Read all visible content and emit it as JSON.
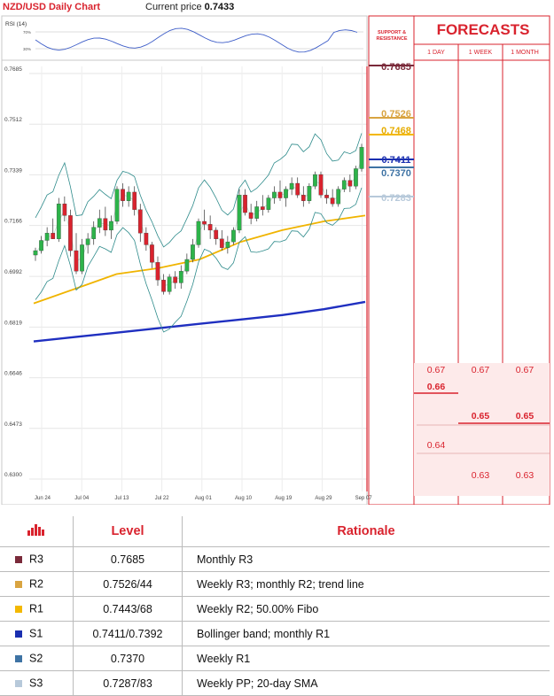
{
  "header": {
    "title": "NZD/USD Daily Chart",
    "price_label": "Current price",
    "price_value": "0.7433"
  },
  "rsi_label": "RSI (14)",
  "rsi_ticks": [
    "70%",
    "30%"
  ],
  "forecasts": {
    "title": "FORECASTS",
    "sr_header": "SUPPORT & RESISTANCE",
    "columns": [
      "1 DAY",
      "1 WEEK",
      "1 MONTH"
    ],
    "values": {
      "day": [
        "0.67",
        "0.66",
        "0.64"
      ],
      "week": [
        "0.67",
        "0.65",
        "0.63"
      ],
      "month": [
        "0.67",
        "0.65",
        "0.63"
      ]
    }
  },
  "levels_on_chart": [
    {
      "name": "R3",
      "value": "0.7685",
      "color": "#7a2a3a"
    },
    {
      "name": "R2",
      "value": "0.7526",
      "color": "#d9a441"
    },
    {
      "name": "R1",
      "value": "0.7468",
      "color": "#f3b800"
    },
    {
      "name": "S1",
      "value": "0.7411",
      "color": "#1a2fb0"
    },
    {
      "name": "S2",
      "value": "0.7370",
      "color": "#3e73a4"
    },
    {
      "name": "S3",
      "value": "0.7283",
      "color": "#b7c9da"
    }
  ],
  "chart_data": {
    "type": "candlestick",
    "title": "NZD/USD Daily Chart",
    "y_ticks": [
      "0.7685",
      "0.7512",
      "0.7339",
      "0.7166",
      "0.6992",
      "0.6819",
      "0.6646",
      "0.6473",
      "0.6300"
    ],
    "x_ticks": [
      "Jun 24",
      "Jul 04",
      "Jul 13",
      "Jul 22",
      "Aug 01",
      "Aug 10",
      "Aug 19",
      "Aug 29",
      "Sep 07"
    ],
    "ylim": [
      0.63,
      0.7685
    ],
    "candles": [
      [
        0.7065,
        0.709,
        0.7045,
        0.708
      ],
      [
        0.708,
        0.713,
        0.707,
        0.7115
      ],
      [
        0.7115,
        0.716,
        0.7095,
        0.714
      ],
      [
        0.714,
        0.719,
        0.712,
        0.712
      ],
      [
        0.712,
        0.726,
        0.711,
        0.724
      ],
      [
        0.724,
        0.7265,
        0.718,
        0.72
      ],
      [
        0.72,
        0.722,
        0.706,
        0.708
      ],
      [
        0.708,
        0.714,
        0.7,
        0.701
      ],
      [
        0.701,
        0.712,
        0.7,
        0.71
      ],
      [
        0.71,
        0.714,
        0.707,
        0.712
      ],
      [
        0.712,
        0.718,
        0.71,
        0.716
      ],
      [
        0.716,
        0.722,
        0.714,
        0.719
      ],
      [
        0.719,
        0.723,
        0.713,
        0.715
      ],
      [
        0.715,
        0.72,
        0.712,
        0.718
      ],
      [
        0.718,
        0.73,
        0.717,
        0.729
      ],
      [
        0.729,
        0.731,
        0.723,
        0.725
      ],
      [
        0.725,
        0.73,
        0.723,
        0.728
      ],
      [
        0.728,
        0.73,
        0.72,
        0.722
      ],
      [
        0.722,
        0.724,
        0.711,
        0.714
      ],
      [
        0.714,
        0.716,
        0.708,
        0.71
      ],
      [
        0.71,
        0.711,
        0.702,
        0.704
      ],
      [
        0.704,
        0.706,
        0.696,
        0.698
      ],
      [
        0.698,
        0.7,
        0.693,
        0.694
      ],
      [
        0.694,
        0.7,
        0.693,
        0.699
      ],
      [
        0.699,
        0.701,
        0.695,
        0.697
      ],
      [
        0.697,
        0.703,
        0.695,
        0.701
      ],
      [
        0.701,
        0.707,
        0.7,
        0.705
      ],
      [
        0.705,
        0.712,
        0.704,
        0.71
      ],
      [
        0.71,
        0.719,
        0.709,
        0.718
      ],
      [
        0.718,
        0.722,
        0.715,
        0.717
      ],
      [
        0.717,
        0.72,
        0.712,
        0.715
      ],
      [
        0.715,
        0.716,
        0.71,
        0.712
      ],
      [
        0.712,
        0.715,
        0.708,
        0.709
      ],
      [
        0.709,
        0.713,
        0.707,
        0.711
      ],
      [
        0.711,
        0.716,
        0.71,
        0.715
      ],
      [
        0.715,
        0.729,
        0.714,
        0.727
      ],
      [
        0.727,
        0.729,
        0.72,
        0.721
      ],
      [
        0.721,
        0.724,
        0.717,
        0.719
      ],
      [
        0.719,
        0.725,
        0.718,
        0.723
      ],
      [
        0.723,
        0.727,
        0.72,
        0.722
      ],
      [
        0.722,
        0.727,
        0.721,
        0.726
      ],
      [
        0.726,
        0.73,
        0.724,
        0.728
      ],
      [
        0.728,
        0.732,
        0.725,
        0.726
      ],
      [
        0.726,
        0.73,
        0.723,
        0.729
      ],
      [
        0.729,
        0.733,
        0.727,
        0.731
      ],
      [
        0.731,
        0.733,
        0.726,
        0.727
      ],
      [
        0.727,
        0.73,
        0.723,
        0.725
      ],
      [
        0.725,
        0.731,
        0.724,
        0.73
      ],
      [
        0.73,
        0.735,
        0.729,
        0.734
      ],
      [
        0.734,
        0.735,
        0.726,
        0.727
      ],
      [
        0.727,
        0.729,
        0.724,
        0.726
      ],
      [
        0.726,
        0.729,
        0.723,
        0.724
      ],
      [
        0.724,
        0.73,
        0.723,
        0.729
      ],
      [
        0.729,
        0.733,
        0.728,
        0.732
      ],
      [
        0.732,
        0.734,
        0.728,
        0.73
      ],
      [
        0.73,
        0.737,
        0.729,
        0.736
      ],
      [
        0.736,
        0.7445,
        0.735,
        0.7433
      ]
    ],
    "series": [
      {
        "name": "",
        "color": "#1f2fc0",
        "values": [
          0.677,
          0.6785,
          0.68,
          0.6815,
          0.683,
          0.6845,
          0.686,
          0.688,
          0.6905
        ]
      },
      {
        "name": "",
        "color": "#f0b400",
        "values": [
          0.69,
          0.695,
          0.7,
          0.702,
          0.705,
          0.711,
          0.715,
          0.718,
          0.72
        ]
      }
    ]
  },
  "table": {
    "headers": [
      "Level",
      "Rationale"
    ],
    "rows": [
      {
        "name": "R3",
        "color": "#7a2a3a",
        "level": "0.7685",
        "rationale": "Monthly R3"
      },
      {
        "name": "R2",
        "color": "#d9a441",
        "level": "0.7526/44",
        "rationale": "Weekly R3; monthly R2; trend line"
      },
      {
        "name": "R1",
        "color": "#f3b800",
        "level": "0.7443/68",
        "rationale": "Weekly R2; 50.00% Fibo"
      },
      {
        "name": "S1",
        "color": "#1a2fb0",
        "level": "0.7411/0.7392",
        "rationale": "Bollinger band; monthly R1"
      },
      {
        "name": "S2",
        "color": "#3e73a4",
        "level": "0.7370",
        "rationale": "Weekly R1"
      },
      {
        "name": "S3",
        "color": "#b7c9da",
        "level": "0.7287/83",
        "rationale": "Weekly PP; 20-day SMA"
      }
    ]
  }
}
